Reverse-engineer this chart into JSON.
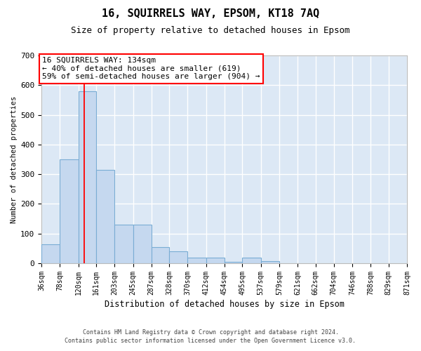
{
  "title": "16, SQUIRRELS WAY, EPSOM, KT18 7AQ",
  "subtitle": "Size of property relative to detached houses in Epsom",
  "xlabel": "Distribution of detached houses by size in Epsom",
  "ylabel": "Number of detached properties",
  "bar_color": "#c5d8ef",
  "bar_edge_color": "#7aadd4",
  "bg_color": "#dce8f5",
  "grid_color": "#ffffff",
  "property_size": 134,
  "property_label": "16 SQUIRRELS WAY: 134sqm",
  "annotation_line1": "← 40% of detached houses are smaller (619)",
  "annotation_line2": "59% of semi-detached houses are larger (904) →",
  "footnote1": "Contains HM Land Registry data © Crown copyright and database right 2024.",
  "footnote2": "Contains public sector information licensed under the Open Government Licence v3.0.",
  "bin_edges": [
    36,
    78,
    120,
    161,
    203,
    245,
    287,
    328,
    370,
    412,
    454,
    495,
    537,
    579,
    621,
    662,
    704,
    746,
    788,
    829,
    871
  ],
  "counts": [
    65,
    350,
    580,
    315,
    130,
    130,
    55,
    40,
    20,
    20,
    5,
    20,
    8,
    0,
    0,
    0,
    0,
    0,
    0,
    0
  ],
  "ylim": [
    0,
    700
  ],
  "yticks": [
    0,
    100,
    200,
    300,
    400,
    500,
    600,
    700
  ],
  "title_fontsize": 11,
  "subtitle_fontsize": 9,
  "xlabel_fontsize": 8.5,
  "ylabel_fontsize": 7.5,
  "tick_fontsize": 7,
  "annotation_fontsize": 8,
  "footnote_fontsize": 6
}
